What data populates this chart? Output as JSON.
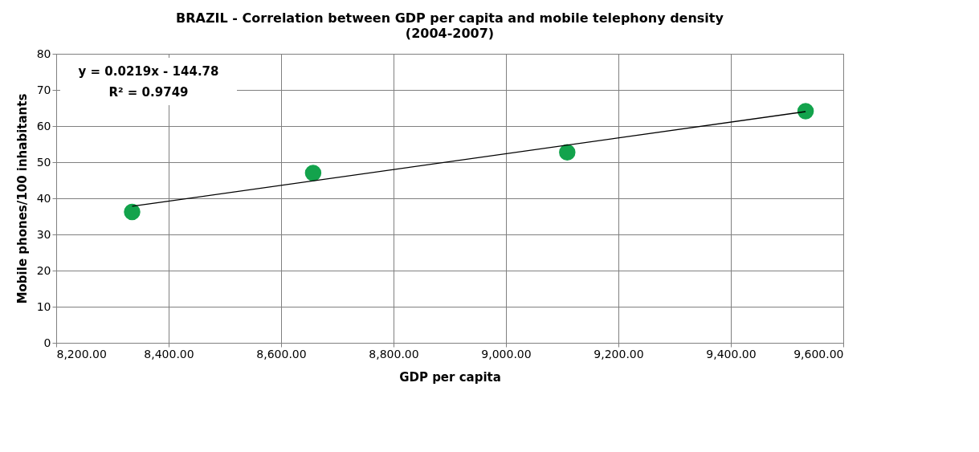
{
  "chart_data": {
    "type": "scatter",
    "title": "BRAZIL - Correlation between GDP per capita and mobile telephony density",
    "subtitle": "(2004-2007)",
    "xlabel": "GDP per capita",
    "ylabel": "Mobile phones/100 inhabitants",
    "series": [
      {
        "color": "#13a34c",
        "marker": "circle",
        "x": [
          8335,
          8657,
          9109,
          9533
        ],
        "values": [
          36.2,
          47.0,
          52.7,
          64.1
        ]
      },
      {
        "type": "line",
        "color": "#000000",
        "marker": "none",
        "line_style": "solid",
        "x": [
          8335,
          9533
        ],
        "values": [
          37.8,
          64.0
        ]
      }
    ],
    "annotations": [
      "y = 0.0219x - 144.78",
      "R² = 0.9749"
    ],
    "xlim": [
      8200,
      9600
    ],
    "xticks": [
      {
        "value": 8200,
        "label": "8,200.00"
      },
      {
        "value": 8400,
        "label": "8,400.00"
      },
      {
        "value": 8600,
        "label": "8,600.00"
      },
      {
        "value": 8800,
        "label": "8,800.00"
      },
      {
        "value": 9000,
        "label": "9,000.00"
      },
      {
        "value": 9200,
        "label": "9,200.00"
      },
      {
        "value": 9400,
        "label": "9,400.00"
      },
      {
        "value": 9600,
        "label": "9,600.00"
      }
    ],
    "ylim": [
      0,
      80
    ],
    "yticks": [
      0,
      10,
      20,
      30,
      40,
      50,
      60,
      70,
      80
    ],
    "grid": true
  }
}
